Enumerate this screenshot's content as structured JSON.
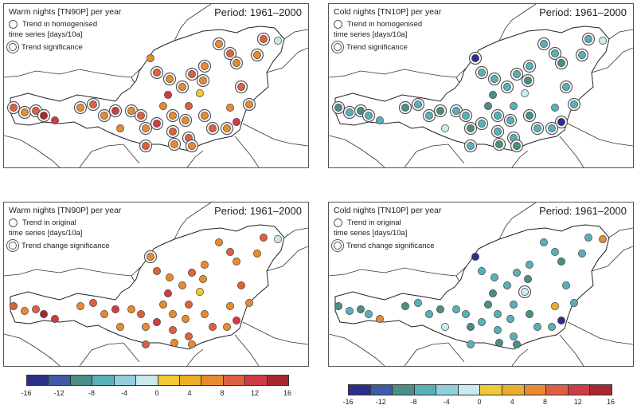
{
  "panels": [
    {
      "title": "Warm nights [TN90P] per year",
      "period": "Period: 1961–2000",
      "legend_line1": "Trend in homogenised",
      "legend_line2": "time series [days/10a]",
      "legend_line3": "Trend significance",
      "stations": [
        {
          "v": 10,
          "s": 1
        },
        {
          "v": 6,
          "s": 1
        },
        {
          "v": 10,
          "s": 1
        },
        {
          "v": 14,
          "s": 1
        },
        {
          "v": 11,
          "s": 0
        },
        {
          "v": 6,
          "s": 1
        },
        {
          "v": 10,
          "s": 1
        },
        {
          "v": 6,
          "s": 1
        },
        {
          "v": 11,
          "s": 1
        },
        {
          "v": 6,
          "s": 0
        },
        {
          "v": 6,
          "s": 1
        },
        {
          "v": 10,
          "s": 1
        },
        {
          "v": 6,
          "s": 1
        },
        {
          "v": 11,
          "s": 1
        },
        {
          "v": 10,
          "s": 1
        },
        {
          "v": 6,
          "s": 0
        },
        {
          "v": 6,
          "s": 1
        },
        {
          "v": 10,
          "s": 1
        },
        {
          "v": 6,
          "s": 1
        },
        {
          "v": 10,
          "s": 0
        },
        {
          "v": 6,
          "s": 1
        },
        {
          "v": 10,
          "s": 1
        },
        {
          "v": 6,
          "s": 1
        },
        {
          "v": 6,
          "s": 0
        },
        {
          "v": 10,
          "s": 1
        },
        {
          "v": 6,
          "s": 1
        },
        {
          "v": 11,
          "s": 0
        },
        {
          "v": 6,
          "s": 1
        },
        {
          "v": 10,
          "s": 1
        },
        {
          "v": 6,
          "s": 1
        },
        {
          "v": 6,
          "s": 1
        },
        {
          "v": 2,
          "s": 0
        },
        {
          "v": 6,
          "s": 1
        },
        {
          "v": 10,
          "s": 1
        },
        {
          "v": 6,
          "s": 1
        },
        {
          "v": 10,
          "s": 1
        },
        {
          "v": 6,
          "s": 1
        },
        {
          "v": 13,
          "s": 0
        },
        {
          "v": 6,
          "s": 1
        },
        {
          "v": 10,
          "s": 1
        },
        {
          "v": 6,
          "s": 0
        },
        {
          "v": 6,
          "s": 1
        },
        {
          "v": 6,
          "s": 1
        },
        {
          "v": 10,
          "s": 1
        },
        {
          "v": -2,
          "s": 0
        }
      ]
    },
    {
      "title": "Cold nights [TN10P] per year",
      "period": "Period: 1961–2000",
      "legend_line1": "Trend in homogenised",
      "legend_line2": "time series [days/10a]",
      "legend_line3": "Trend significance",
      "stations": [
        {
          "v": -10,
          "s": 1
        },
        {
          "v": -6,
          "s": 1
        },
        {
          "v": -10,
          "s": 1
        },
        {
          "v": -6,
          "s": 1
        },
        {
          "v": -6,
          "s": 0
        },
        {
          "v": -10,
          "s": 1
        },
        {
          "v": -6,
          "s": 1
        },
        {
          "v": -6,
          "s": 1
        },
        {
          "v": -10,
          "s": 1
        },
        {
          "v": -2,
          "s": 0
        },
        {
          "v": -6,
          "s": 1
        },
        {
          "v": -6,
          "s": 1
        },
        {
          "v": -10,
          "s": 1
        },
        {
          "v": -6,
          "s": 1
        },
        {
          "v": -6,
          "s": 1
        },
        {
          "v": -10,
          "s": 0
        },
        {
          "v": -6,
          "s": 1
        },
        {
          "v": -6,
          "s": 1
        },
        {
          "v": -10,
          "s": 1
        },
        {
          "v": -6,
          "s": 0
        },
        {
          "v": -6,
          "s": 1
        },
        {
          "v": -6,
          "s": 1
        },
        {
          "v": -10,
          "s": 1
        },
        {
          "v": -14,
          "s": 1
        },
        {
          "v": -6,
          "s": 1
        },
        {
          "v": -6,
          "s": 1
        },
        {
          "v": -10,
          "s": 0
        },
        {
          "v": -6,
          "s": 1
        },
        {
          "v": -6,
          "s": 1
        },
        {
          "v": -6,
          "s": 1
        },
        {
          "v": -10,
          "s": 1
        },
        {
          "v": -2,
          "s": 0
        },
        {
          "v": -6,
          "s": 1
        },
        {
          "v": -6,
          "s": 1
        },
        {
          "v": -10,
          "s": 1
        },
        {
          "v": -6,
          "s": 1
        },
        {
          "v": -6,
          "s": 1
        },
        {
          "v": -15,
          "s": 1
        },
        {
          "v": -6,
          "s": 1
        },
        {
          "v": -6,
          "s": 1
        },
        {
          "v": -6,
          "s": 0
        },
        {
          "v": -10,
          "s": 1
        },
        {
          "v": -6,
          "s": 1
        },
        {
          "v": -6,
          "s": 1
        },
        {
          "v": -2,
          "s": 0
        }
      ]
    },
    {
      "title": "Warm nights [TN90P] per year",
      "period": "Period: 1961–2000",
      "legend_line1": "Trend in original",
      "legend_line2": "time series [days/10a]",
      "legend_line3": "Trend change significance",
      "stations": [
        {
          "v": 10,
          "s": 0
        },
        {
          "v": 6,
          "s": 0
        },
        {
          "v": 10,
          "s": 0
        },
        {
          "v": 14,
          "s": 0
        },
        {
          "v": 11,
          "s": 0
        },
        {
          "v": 6,
          "s": 0
        },
        {
          "v": 10,
          "s": 0
        },
        {
          "v": 6,
          "s": 0
        },
        {
          "v": 11,
          "s": 0
        },
        {
          "v": 6,
          "s": 0
        },
        {
          "v": 6,
          "s": 0
        },
        {
          "v": 10,
          "s": 0
        },
        {
          "v": 6,
          "s": 0
        },
        {
          "v": 11,
          "s": 0
        },
        {
          "v": 10,
          "s": 0
        },
        {
          "v": 6,
          "s": 0
        },
        {
          "v": 6,
          "s": 0
        },
        {
          "v": 10,
          "s": 0
        },
        {
          "v": 6,
          "s": 0
        },
        {
          "v": 10,
          "s": 0
        },
        {
          "v": 6,
          "s": 0
        },
        {
          "v": 10,
          "s": 0
        },
        {
          "v": 6,
          "s": 0
        },
        {
          "v": 6,
          "s": 1
        },
        {
          "v": 10,
          "s": 0
        },
        {
          "v": 6,
          "s": 0
        },
        {
          "v": 11,
          "s": 0
        },
        {
          "v": 6,
          "s": 0
        },
        {
          "v": 10,
          "s": 0
        },
        {
          "v": 6,
          "s": 0
        },
        {
          "v": 6,
          "s": 0
        },
        {
          "v": 2,
          "s": 0
        },
        {
          "v": 6,
          "s": 0
        },
        {
          "v": 10,
          "s": 0
        },
        {
          "v": 6,
          "s": 0
        },
        {
          "v": 10,
          "s": 0
        },
        {
          "v": 6,
          "s": 0
        },
        {
          "v": 13,
          "s": 0
        },
        {
          "v": 6,
          "s": 0
        },
        {
          "v": 10,
          "s": 0
        },
        {
          "v": 6,
          "s": 0
        },
        {
          "v": 6,
          "s": 0
        },
        {
          "v": 6,
          "s": 0
        },
        {
          "v": 10,
          "s": 0
        },
        {
          "v": -2,
          "s": 0
        }
      ]
    },
    {
      "title": "Cold nights [TN10P] per year",
      "period": "Period: 1961–2000",
      "legend_line1": "Trend in original",
      "legend_line2": "time series [days/10a]",
      "legend_line3": "Trend change significance",
      "stations": [
        {
          "v": -10,
          "s": 0
        },
        {
          "v": -6,
          "s": 0
        },
        {
          "v": -10,
          "s": 0
        },
        {
          "v": -6,
          "s": 0
        },
        {
          "v": 6,
          "s": 0
        },
        {
          "v": -10,
          "s": 0
        },
        {
          "v": -6,
          "s": 0
        },
        {
          "v": -6,
          "s": 0
        },
        {
          "v": -10,
          "s": 0
        },
        {
          "v": -2,
          "s": 0
        },
        {
          "v": -6,
          "s": 0
        },
        {
          "v": -6,
          "s": 0
        },
        {
          "v": -10,
          "s": 0
        },
        {
          "v": -6,
          "s": 0
        },
        {
          "v": -6,
          "s": 0
        },
        {
          "v": -10,
          "s": 0
        },
        {
          "v": -6,
          "s": 0
        },
        {
          "v": -6,
          "s": 0
        },
        {
          "v": -10,
          "s": 0
        },
        {
          "v": -6,
          "s": 0
        },
        {
          "v": -6,
          "s": 0
        },
        {
          "v": -6,
          "s": 0
        },
        {
          "v": -10,
          "s": 0
        },
        {
          "v": -14,
          "s": 0
        },
        {
          "v": -6,
          "s": 0
        },
        {
          "v": -6,
          "s": 0
        },
        {
          "v": -10,
          "s": 0
        },
        {
          "v": -6,
          "s": 0
        },
        {
          "v": -6,
          "s": 0
        },
        {
          "v": -6,
          "s": 0
        },
        {
          "v": -10,
          "s": 0
        },
        {
          "v": -2,
          "s": 1
        },
        {
          "v": -6,
          "s": 0
        },
        {
          "v": -6,
          "s": 0
        },
        {
          "v": -10,
          "s": 0
        },
        {
          "v": -6,
          "s": 0
        },
        {
          "v": -6,
          "s": 0
        },
        {
          "v": -15,
          "s": 0
        },
        {
          "v": -6,
          "s": 0
        },
        {
          "v": -6,
          "s": 0
        },
        {
          "v": 4,
          "s": 0
        },
        {
          "v": -10,
          "s": 0
        },
        {
          "v": -6,
          "s": 0
        },
        {
          "v": -6,
          "s": 0
        },
        {
          "v": 6,
          "s": 0
        }
      ]
    }
  ],
  "colorbar": {
    "ticks": [
      "-16",
      "-12",
      "-8",
      "-4",
      "0",
      "4",
      "8",
      "12",
      "16"
    ],
    "colors": [
      "#2b2f8c",
      "#3f5aa6",
      "#4a8f87",
      "#5ab0b8",
      "#8fd0dc",
      "#c9e8f0",
      "#f0c838",
      "#ecae2a",
      "#e88a30",
      "#dd6040",
      "#d03c44",
      "#a82830"
    ]
  }
}
